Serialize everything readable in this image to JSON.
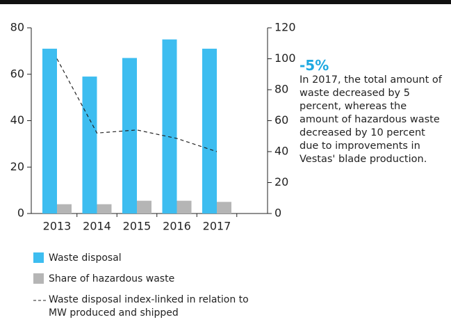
{
  "chart_data": {
    "type": "bar",
    "categories": [
      "2013",
      "2014",
      "2015",
      "2016",
      "2017"
    ],
    "series": [
      {
        "name": "Waste disposal",
        "color": "#3dbdf0",
        "values": [
          71,
          59,
          67,
          75,
          71
        ]
      },
      {
        "name": "Share of hazardous waste",
        "color": "#b5b5b5",
        "values": [
          4,
          4,
          5.5,
          5.5,
          5
        ]
      },
      {
        "name": "Waste disposal index-linked in relation to MW produced and shipped",
        "color": "#222222",
        "type": "line",
        "axis": "y2",
        "values": [
          100,
          52,
          54,
          48.5,
          40
        ]
      }
    ],
    "ylim": [
      0,
      80
    ],
    "yticks": [
      0,
      20,
      40,
      60,
      80
    ],
    "y2lim": [
      0,
      120
    ],
    "y2ticks": [
      0,
      20,
      40,
      60,
      80,
      100,
      120
    ],
    "annotation": {
      "heading": "-5%",
      "text": "In 2017, the total amount of waste decreased by 5 percent, whereas the amount of hazardous waste decreased by 10 percent due to improvements in Vestas' blade production."
    }
  }
}
